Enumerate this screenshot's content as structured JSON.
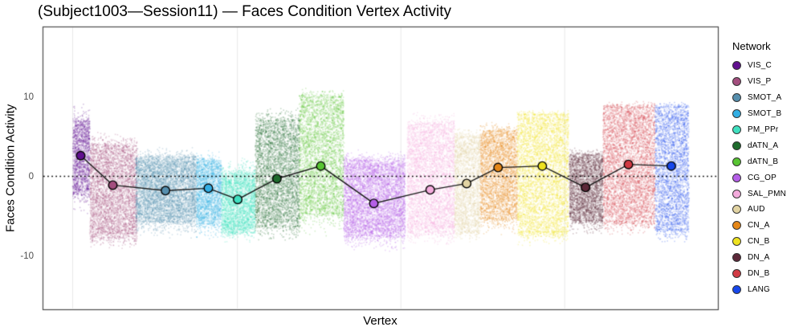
{
  "chart_data": {
    "type": "scatter",
    "title": "(Subject1003—Session11) — Faces Condition Vertex Activity",
    "xlabel": "Vertex",
    "ylabel": "Faces Condition Activity",
    "ylim": [
      -16.8,
      18.8
    ],
    "yticks": [
      "10",
      "0",
      "-10"
    ],
    "x_tick_labels_shown": false,
    "grid": {
      "vertical_fractions": [
        0.044,
        0.288,
        0.53,
        0.7725
      ],
      "color": "#e9e9e9"
    },
    "zero_line": {
      "value": 0,
      "style": "dotted",
      "color": "#000000"
    },
    "legend": {
      "title": "Network",
      "position": "right"
    },
    "mean_line_color": "#1b1b1b",
    "panel_border_color": "#4a4a4a",
    "networks": [
      {
        "name": "VIS_C",
        "color": "#61108F",
        "band": [
          0.044,
          0.069
        ],
        "mean": 2.6,
        "dense": [
          -2.1,
          7.0
        ],
        "tails": [
          -5.0,
          9.5
        ]
      },
      {
        "name": "VIS_P",
        "color": "#A34E7E",
        "band": [
          0.069,
          0.139
        ],
        "mean": -1.1,
        "dense": [
          -7.5,
          3.8
        ],
        "tails": [
          -9.3,
          6.0
        ]
      },
      {
        "name": "SMOT_A",
        "color": "#568FAE",
        "band": [
          0.137,
          0.227
        ],
        "mean": -1.8,
        "dense": [
          -5.5,
          2.4
        ],
        "tails": [
          -8.0,
          3.8
        ]
      },
      {
        "name": "SMOT_B",
        "color": "#33AEE3",
        "band": [
          0.227,
          0.264
        ],
        "mean": -1.5,
        "dense": [
          -5.8,
          2.0
        ],
        "tails": [
          -8.2,
          3.5
        ]
      },
      {
        "name": "PM_PPr",
        "color": "#40E0C0",
        "band": [
          0.264,
          0.314
        ],
        "mean": -2.9,
        "dense": [
          -6.9,
          0.4
        ],
        "tails": [
          -8.4,
          2.5
        ]
      },
      {
        "name": "dATN_A",
        "color": "#1E6B2D",
        "band": [
          0.314,
          0.38
        ],
        "mean": -0.3,
        "dense": [
          -6.1,
          7.0
        ],
        "tails": [
          -8.2,
          8.8
        ]
      },
      {
        "name": "dATN_B",
        "color": "#58C433",
        "band": [
          0.379,
          0.445
        ],
        "mean": 1.3,
        "dense": [
          -4.5,
          10.0
        ],
        "tails": [
          -7.5,
          11.3
        ]
      },
      {
        "name": "CG_OP",
        "color": "#B55FE8",
        "band": [
          0.445,
          0.536
        ],
        "mean": -3.4,
        "dense": [
          -7.3,
          2.0
        ],
        "tails": [
          -9.6,
          3.5
        ]
      },
      {
        "name": "SAL_PMN",
        "color": "#F3ABDC",
        "band": [
          0.539,
          0.609
        ],
        "mean": -1.7,
        "dense": [
          -6.8,
          6.5
        ],
        "tails": [
          -8.8,
          8.6
        ]
      },
      {
        "name": "AUD",
        "color": "#E2D4A3",
        "band": [
          0.609,
          0.647
        ],
        "mean": -0.9,
        "dense": [
          -6.8,
          5.0
        ],
        "tails": [
          -8.3,
          6.2
        ]
      },
      {
        "name": "CN_A",
        "color": "#E58718",
        "band": [
          0.647,
          0.702
        ],
        "mean": 1.1,
        "dense": [
          -5.1,
          5.7
        ],
        "tails": [
          -7.4,
          7.0
        ]
      },
      {
        "name": "CN_B",
        "color": "#EEE220",
        "band": [
          0.702,
          0.778
        ],
        "mean": 1.3,
        "dense": [
          -6.8,
          7.8
        ],
        "tails": [
          -8.8,
          8.6
        ]
      },
      {
        "name": "DN_A",
        "color": "#5C2839",
        "band": [
          0.779,
          0.829
        ],
        "mean": -1.4,
        "dense": [
          -5.4,
          2.7
        ],
        "tails": [
          -7.6,
          3.8
        ]
      },
      {
        "name": "DN_B",
        "color": "#D13B44",
        "band": [
          0.829,
          0.906
        ],
        "mean": 1.5,
        "dense": [
          -5.5,
          8.7
        ],
        "tails": [
          -7.4,
          9.6
        ]
      },
      {
        "name": "LANG",
        "color": "#1747EC",
        "band": [
          0.906,
          0.956
        ],
        "mean": 1.3,
        "dense": [
          -6.5,
          8.7
        ],
        "tails": [
          -8.4,
          9.6
        ]
      }
    ],
    "mean_line": {
      "categories": [
        "VIS_C",
        "VIS_P",
        "SMOT_A",
        "SMOT_B",
        "PM_PPr",
        "dATN_A",
        "dATN_B",
        "CG_OP",
        "SAL_PMN",
        "AUD",
        "CN_A",
        "CN_B",
        "DN_A",
        "DN_B",
        "LANG"
      ],
      "values": [
        2.6,
        -1.1,
        -1.8,
        -1.5,
        -2.9,
        -0.3,
        1.3,
        -3.4,
        -1.7,
        -0.9,
        1.1,
        1.3,
        -1.4,
        1.5,
        1.3
      ]
    }
  }
}
